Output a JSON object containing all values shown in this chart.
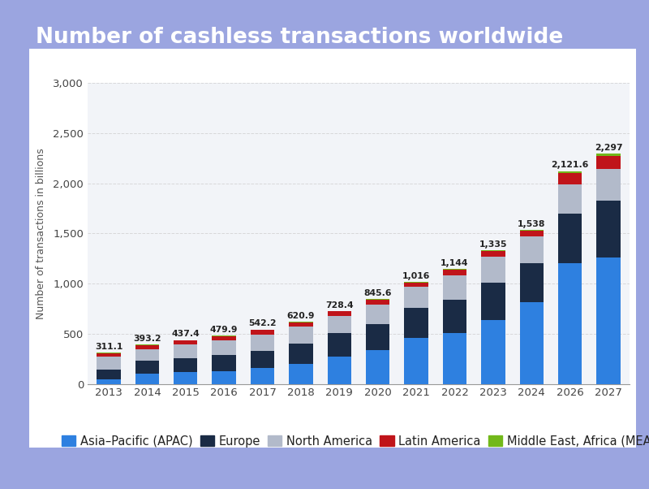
{
  "title": "Number of cashless transactions worldwide",
  "ylabel": "Number of transactions in billions",
  "background_outer": "#9ba5e0",
  "background_inner": "#f2f4f8",
  "years": [
    2013,
    2014,
    2015,
    2016,
    2017,
    2018,
    2019,
    2020,
    2021,
    2022,
    2023,
    2024,
    2026,
    2027
  ],
  "totals": [
    "311.1",
    "393.2",
    "437.4",
    "479.9",
    "542.2",
    "620.9",
    "728.4",
    "845.6",
    "1,016",
    "1,144",
    "1,335",
    "1,538",
    "2,121.6",
    "2,297"
  ],
  "segments": {
    "Asia–Pacific (APAC)": {
      "color": "#2e80e0",
      "values": [
        48,
        100,
        115,
        130,
        160,
        200,
        275,
        335,
        460,
        505,
        635,
        815,
        1200,
        1260
      ]
    },
    "Europe": {
      "color": "#1a2b45",
      "values": [
        93,
        128,
        143,
        158,
        172,
        202,
        230,
        265,
        300,
        335,
        375,
        385,
        495,
        565
      ]
    },
    "North America": {
      "color": "#b2baca",
      "values": [
        135,
        120,
        135,
        148,
        158,
        168,
        172,
        192,
        205,
        245,
        255,
        268,
        295,
        320
      ]
    },
    "Latin America": {
      "color": "#c0141a",
      "values": [
        30,
        38,
        39,
        38,
        46,
        44,
        45,
        46,
        44,
        52,
        62,
        62,
        112,
        128
      ]
    },
    "Middle East, Africa (MEA)": {
      "color": "#72b81a",
      "values": [
        5,
        7,
        5,
        6,
        6,
        7,
        6,
        8,
        7,
        7,
        8,
        8,
        20,
        24
      ]
    }
  },
  "ylim": [
    0,
    3000
  ],
  "yticks": [
    0,
    500,
    1000,
    1500,
    2000,
    2500,
    3000
  ],
  "title_fontsize": 19,
  "legend_fontsize": 10.5,
  "axis_label_fontsize": 9,
  "tick_fontsize": 9.5
}
